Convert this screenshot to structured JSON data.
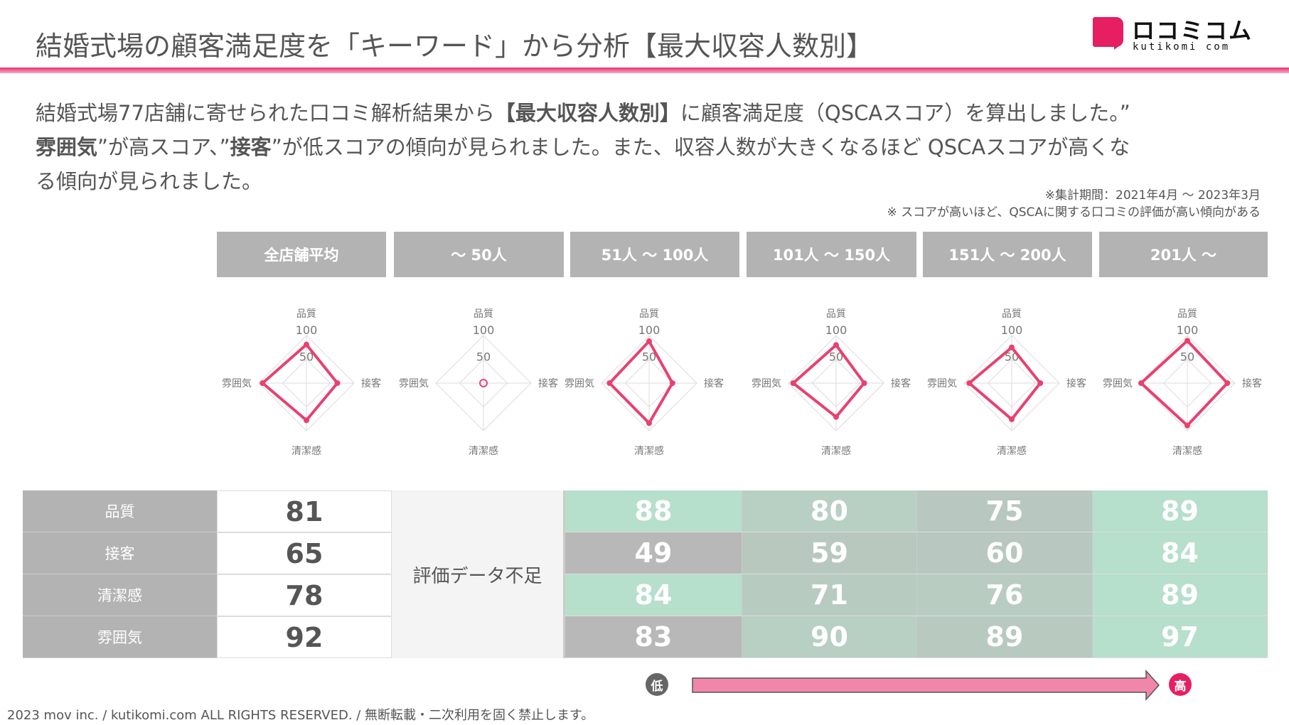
{
  "header": {
    "title": "結婚式場の顧客満足度を「キーワード」から分析【最大収容人数別】",
    "logo_jp": "ロコミコム",
    "logo_en": "kutikomi com"
  },
  "intro": {
    "line1_a": "結婚式場77店舗に寄せられた口コミ解析結果から",
    "line1_b": "【最大収容人数別】",
    "line1_c": "に顧客満足度（QSCAスコア）を算出しました。”",
    "line2_a": "雰囲気",
    "line2_b": "”が高スコア、”",
    "line2_c": "接客",
    "line2_d": "”が低スコアの傾向が見られました。また、収容人数が大きくなるほど QSCAスコアが高くな",
    "line3": "る傾向が見られました。"
  },
  "notes": [
    "※集計期間：2021年4月 ～ 2023年3月",
    "※ スコアが高いほど、QSCAに関する口コミの評価が高い傾向がある"
  ],
  "columns": [
    "全店舗平均",
    "～ 50人",
    "51人 ～ 100人",
    "101人 ～ 150人",
    "151人 ～ 200人",
    "201人 ～"
  ],
  "radar": {
    "axes": [
      "品質",
      "接客",
      "清潔感",
      "雰囲気"
    ],
    "ticks": [
      "50",
      "100"
    ],
    "max": 100,
    "color": "#e8416f",
    "series": [
      [
        81,
        65,
        78,
        92
      ],
      null,
      [
        88,
        49,
        84,
        83
      ],
      [
        80,
        59,
        71,
        90
      ],
      [
        75,
        60,
        76,
        89
      ],
      [
        89,
        84,
        89,
        97
      ]
    ]
  },
  "table": {
    "rows": [
      "品質",
      "接客",
      "清潔感",
      "雰囲気"
    ],
    "average": [
      "81",
      "65",
      "78",
      "92"
    ],
    "no_data": "評価データ不足",
    "values": [
      [
        "88",
        "80",
        "75",
        "89"
      ],
      [
        "49",
        "59",
        "60",
        "84"
      ],
      [
        "84",
        "71",
        "76",
        "89"
      ],
      [
        "83",
        "90",
        "89",
        "97"
      ]
    ],
    "colors": [
      [
        "#b6dfcc",
        "#b8d0c4",
        "#b8c7bf",
        "#b6dfcc"
      ],
      [
        "#b8b8b8",
        "#b8c8bf",
        "#b8c7bf",
        "#b6dfcc"
      ],
      [
        "#b6dfcc",
        "#b8cbc1",
        "#b8ccc2",
        "#b6dfcc"
      ],
      [
        "#b8b8b8",
        "#b8cfc3",
        "#b8c9c0",
        "#b6dfcc"
      ]
    ]
  },
  "legend": {
    "low": "低",
    "high": "高"
  },
  "footer": "2023 mov inc. / kutikomi.com ALL RIGHTS RESERVED. / 無断転載・二次利用を固く禁止します。"
}
